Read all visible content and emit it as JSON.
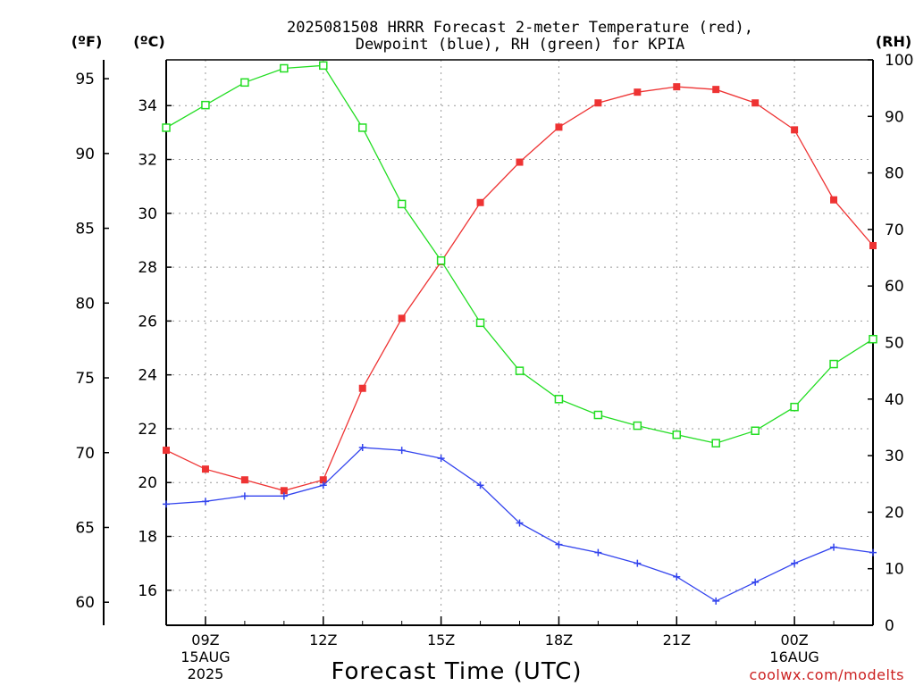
{
  "chart_data": {
    "type": "line",
    "title_line1": "2025081508 HRRR Forecast 2-meter Temperature (red),",
    "title_line2": "Dewpoint (blue), RH (green) for KPIA",
    "xlabel": "Forecast Time (UTC)",
    "credit": "coolwx.com/modelts",
    "left_outer_unit": "(ºF)",
    "left_inner_unit": "(ºC)",
    "right_unit": "(RH)",
    "x_hours": [
      8,
      9,
      10,
      11,
      12,
      13,
      14,
      15,
      16,
      17,
      18,
      19,
      20,
      21,
      22,
      23,
      24,
      25,
      26
    ],
    "x_ticks": [
      {
        "hour": 9,
        "label": "09Z",
        "sub1": "15AUG",
        "sub2": "2025"
      },
      {
        "hour": 12,
        "label": "12Z",
        "sub1": "",
        "sub2": ""
      },
      {
        "hour": 15,
        "label": "15Z",
        "sub1": "",
        "sub2": ""
      },
      {
        "hour": 18,
        "label": "18Z",
        "sub1": "",
        "sub2": ""
      },
      {
        "hour": 21,
        "label": "21Z",
        "sub1": "",
        "sub2": ""
      },
      {
        "hour": 24,
        "label": "00Z",
        "sub1": "16AUG",
        "sub2": ""
      }
    ],
    "xlim": [
      8,
      26
    ],
    "celsius_axis": {
      "ylim": [
        14.7,
        35.7
      ],
      "ticks": [
        16,
        18,
        20,
        22,
        24,
        26,
        28,
        30,
        32,
        34
      ]
    },
    "fahrenheit_ticks": [
      60,
      65,
      70,
      75,
      80,
      85,
      90,
      95
    ],
    "rh_axis": {
      "ylim": [
        0,
        100
      ],
      "ticks": [
        0,
        10,
        20,
        30,
        40,
        50,
        60,
        70,
        80,
        90,
        100
      ]
    },
    "grid": true,
    "series": [
      {
        "name": "Temperature",
        "color": "#ee3333",
        "marker": "filled-square",
        "axis": "celsius",
        "values": [
          21.2,
          20.5,
          20.1,
          19.7,
          20.1,
          23.5,
          26.1,
          28.2,
          30.4,
          31.9,
          33.2,
          34.1,
          34.5,
          34.7,
          34.6,
          34.1,
          33.1,
          30.5,
          28.8
        ]
      },
      {
        "name": "Dewpoint",
        "color": "#3344ee",
        "marker": "plus",
        "axis": "celsius",
        "values": [
          19.2,
          19.3,
          19.5,
          19.5,
          19.9,
          21.3,
          21.2,
          20.9,
          19.9,
          18.5,
          17.7,
          17.4,
          17.0,
          16.5,
          15.6,
          16.3,
          17.0,
          17.6,
          17.4
        ]
      },
      {
        "name": "RH",
        "color": "#22dd22",
        "marker": "open-square",
        "axis": "rh",
        "values": [
          88,
          92,
          96,
          98.5,
          99,
          88,
          74.5,
          64.5,
          53.5,
          45,
          40,
          37.2,
          35.3,
          33.7,
          32.2,
          34.4,
          38.6,
          46.2,
          50.6
        ]
      }
    ]
  }
}
